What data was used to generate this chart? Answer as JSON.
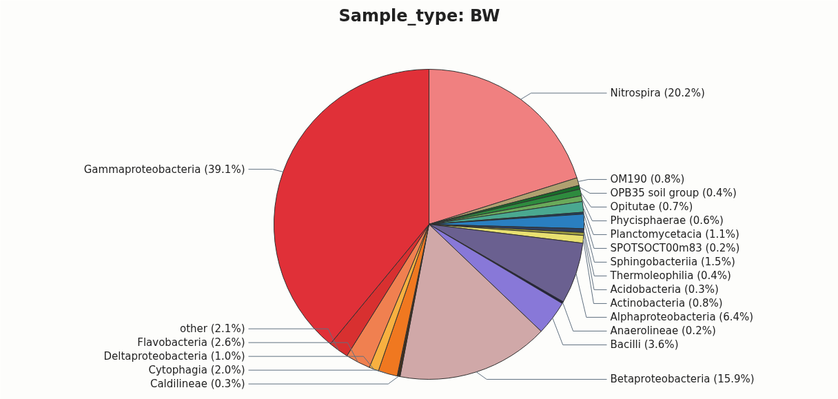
{
  "chart_data": {
    "type": "pie",
    "title": "Sample_type: BW",
    "categories": [
      "Nitrospira",
      "OM190",
      "OPB35 soil group",
      "Opitutae",
      "Phycisphaerae",
      "Planctomycetacia",
      "SPOTSOCT00m83",
      "Sphingobacteriia",
      "Thermoleophilia",
      "Acidobacteria",
      "Actinobacteria",
      "Alphaproteobacteria",
      "Anaerolineae",
      "Bacilli",
      "Betaproteobacteria",
      "Caldilineae",
      "Cytophagia",
      "Deltaproteobacteria",
      "Flavobacteria",
      "other",
      "Gammaproteobacteria"
    ],
    "values": [
      20.2,
      0.8,
      0.4,
      0.7,
      0.6,
      1.1,
      0.2,
      1.5,
      0.4,
      0.3,
      0.8,
      6.4,
      0.2,
      3.6,
      15.9,
      0.3,
      2.0,
      1.0,
      2.6,
      2.1,
      39.1
    ],
    "colors": [
      "#f08080",
      "#b0a070",
      "#1a6b2a",
      "#2e8b3e",
      "#6aaa5a",
      "#4aa890",
      "#204060",
      "#2a7fc0",
      "#304060",
      "#a0a040",
      "#e8e070",
      "#6a6090",
      "#202040",
      "#8878d8",
      "#d0a8a8",
      "#403020",
      "#f07820",
      "#f8b040",
      "#f08050",
      "#d83030",
      "#e03038"
    ],
    "value_labels": [
      "(20.2%)",
      "(0.8%)",
      "(0.4%)",
      "(0.7%)",
      "(0.6%)",
      "(1.1%)",
      "(0.2%)",
      "(1.5%)",
      "(0.4%)",
      "(0.3%)",
      "(0.8%)",
      "(6.4%)",
      "(0.2%)",
      "(3.6%)",
      "(15.9%)",
      "(0.3%)",
      "(2.0%)",
      "(1.0%)",
      "(2.6%)",
      "(2.1%)",
      "(39.1%)"
    ]
  }
}
